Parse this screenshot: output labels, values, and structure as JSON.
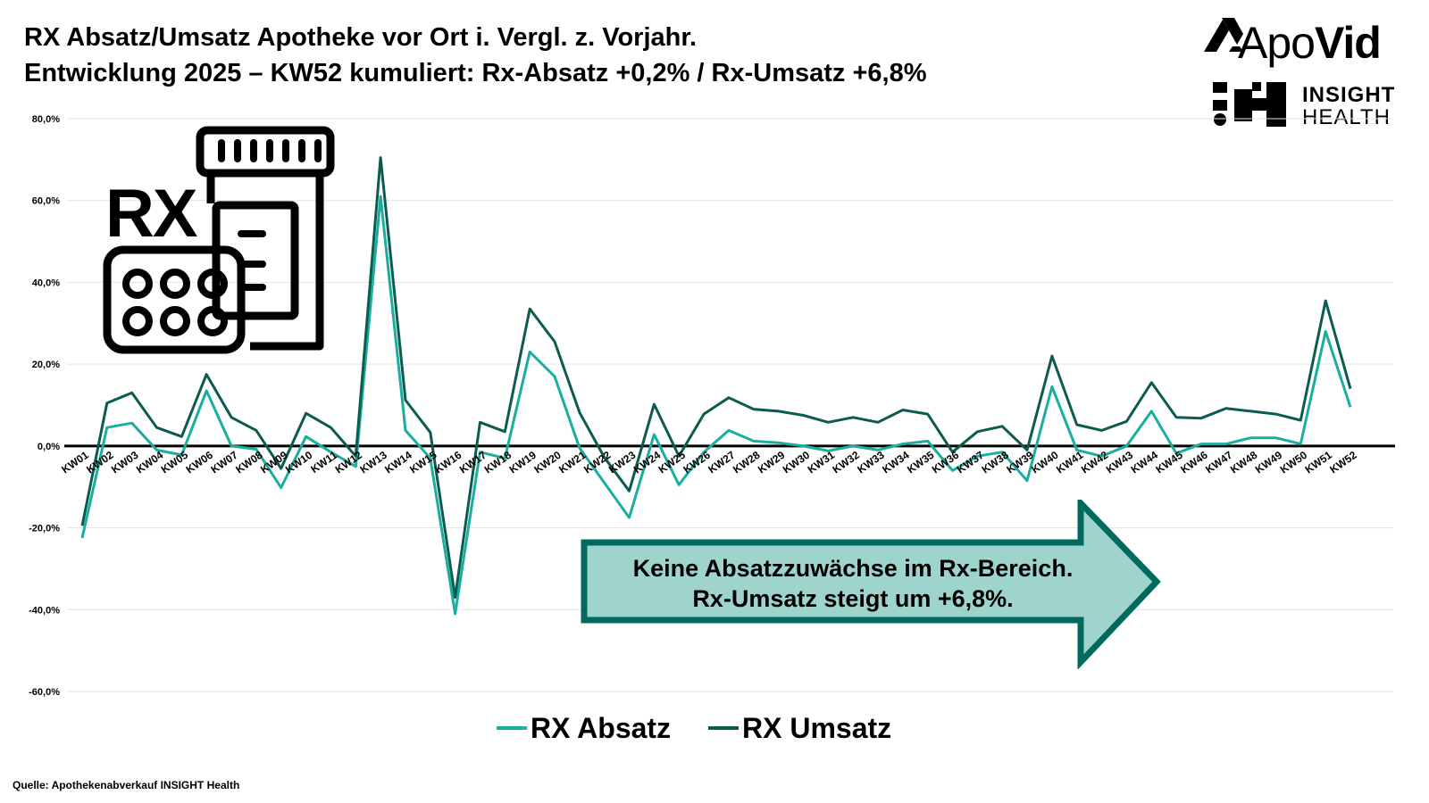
{
  "header": {
    "title_line1": "RX Absatz/Umsatz Apotheke vor Ort i. Vergl. z. Vorjahr.",
    "title_line2": "Entwicklung 2025 – KW52 kumuliert: Rx-Absatz +0,2% / Rx-Umsatz +6,8%"
  },
  "logos": {
    "apovid_prefix": "Apo",
    "apovid_suffix": "Vid",
    "insight_line1": "INSIGHT",
    "insight_line2": "HEALTH"
  },
  "icon": {
    "rx_text": "RX",
    "name": "rx-medicine-icon"
  },
  "callout": {
    "line1": "Keine Absatzzuwächse im Rx-Bereich.",
    "line2": "Rx-Umsatz steigt um +6,8%.",
    "fill": "#9ed4cb",
    "stroke": "#006a5e"
  },
  "footer": {
    "source": "Quelle: Apothekenabverkauf INSIGHT Health"
  },
  "chart_data": {
    "type": "line",
    "title": "",
    "xlabel": "",
    "ylabel": "",
    "ylim": [
      -60,
      80
    ],
    "yticks": [
      80,
      60,
      40,
      20,
      0,
      -20,
      -40,
      -60
    ],
    "ytick_labels": [
      "80,0%",
      "60,0%",
      "40,0%",
      "20,0%",
      "0,0%",
      "-20,0%",
      "-40,0%",
      "-60,0%"
    ],
    "grid": true,
    "legend": "bottom",
    "categories": [
      "KW01",
      "KW02",
      "KW03",
      "KW04",
      "KW05",
      "KW06",
      "KW07",
      "KW08",
      "KW09",
      "KW10",
      "KW11",
      "KW12",
      "KW13",
      "KW14",
      "KW15",
      "KW16",
      "KW17",
      "KW18",
      "KW19",
      "KW20",
      "KW21",
      "KW22",
      "KW23",
      "KW24",
      "KW25",
      "KW26",
      "KW27",
      "KW28",
      "KW29",
      "KW30",
      "KW31",
      "KW32",
      "KW33",
      "KW34",
      "KW35",
      "KW36",
      "KW37",
      "KW38",
      "KW39",
      "KW40",
      "KW41",
      "KW42",
      "KW43",
      "KW44",
      "KW45",
      "KW46",
      "KW47",
      "KW48",
      "KW49",
      "KW50",
      "KW51",
      "KW52"
    ],
    "series": [
      {
        "name": "RX Absatz",
        "color": "#1aaea0",
        "values": [
          -22.5,
          4.5,
          5.6,
          -1.0,
          -2.2,
          13.5,
          0.0,
          -0.8,
          -10.2,
          2.3,
          -1.5,
          -5.0,
          61.0,
          3.8,
          -3.0,
          -41.0,
          -1.5,
          -3.0,
          23.0,
          17.0,
          -0.5,
          -9.0,
          -17.5,
          2.8,
          -9.5,
          -1.5,
          3.8,
          1.2,
          0.8,
          0.0,
          -1.2,
          0.0,
          -1.0,
          0.5,
          1.2,
          -6.0,
          -2.5,
          -1.5,
          -8.5,
          14.5,
          -1.0,
          -2.5,
          0.0,
          8.5,
          -1.8,
          0.5,
          0.5,
          2.0,
          2.0,
          0.5,
          28.0,
          9.5
        ]
      },
      {
        "name": "RX Umsatz",
        "color": "#0b5c4f",
        "values": [
          -19.5,
          10.5,
          13.0,
          4.5,
          2.3,
          17.5,
          7.0,
          3.8,
          -5.5,
          8.0,
          4.5,
          -2.5,
          70.5,
          11.2,
          3.3,
          -37.0,
          5.8,
          3.5,
          33.5,
          25.5,
          8.2,
          -2.8,
          -11.0,
          10.2,
          -2.5,
          7.8,
          11.8,
          9.0,
          8.5,
          7.5,
          5.8,
          7.0,
          5.8,
          8.8,
          7.8,
          -1.5,
          3.5,
          4.8,
          -1.0,
          22.0,
          5.2,
          3.8,
          6.0,
          15.5,
          7.0,
          6.8,
          9.2,
          8.5,
          7.8,
          6.3,
          35.5,
          14.0
        ]
      }
    ]
  }
}
